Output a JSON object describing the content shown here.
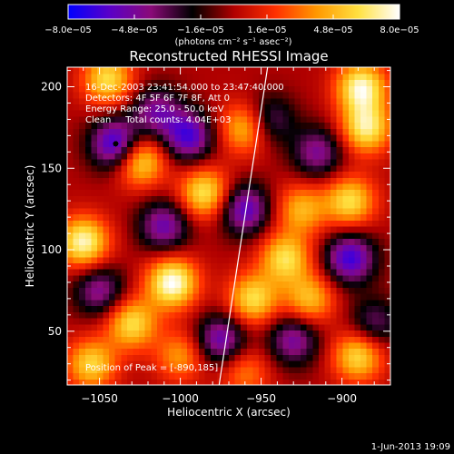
{
  "chart_data": {
    "type": "heatmap",
    "title": "Reconstructed RHESSI Image",
    "xlabel": "Heliocentric X (arcsec)",
    "ylabel": "Heliocentric Y (arcsec)",
    "xlim": [
      -1070,
      -870
    ],
    "ylim": [
      17,
      212
    ],
    "x_ticks": [
      -1050,
      -1000,
      -950,
      -900
    ],
    "x_tick_labels": [
      "−1050",
      "−1000",
      "−950",
      "−900"
    ],
    "y_ticks": [
      50,
      100,
      150,
      200
    ],
    "y_tick_labels": [
      "50",
      "100",
      "150",
      "200"
    ],
    "colorbar": {
      "range": [
        -8e-05,
        8e-05
      ],
      "tick_labels": [
        "−8.0e−05",
        "−4.8e−05",
        "−1.6e−05",
        "1.6e−05",
        "4.8e−05",
        "8.0e−05"
      ],
      "unit_label": "(photons cm⁻² s⁻¹ asec⁻²)",
      "colors": [
        "#0000ff",
        "#5a00c8",
        "#8a0a78",
        "#000000",
        "#b00000",
        "#ff3000",
        "#ff9800",
        "#ffe040",
        "#ffffff"
      ]
    },
    "annotations": [
      "16-Dec-2003 23:41:54.000 to 23:47:40.000",
      "Detectors: 4F 5F 6F 7F 8F, Att 0",
      "Energy Range: 25.0 - 50.0 keV",
      "Clean     Total counts: 4.04E+03"
    ],
    "peak_label": "Position of Peak = [-890,185]",
    "peak": [
      -890,
      185
    ],
    "limb_line": [
      [
        -976,
        17
      ],
      [
        -946,
        212
      ]
    ],
    "image_grid": {
      "x_range": [
        -1070,
        -870
      ],
      "y_range": [
        17,
        212
      ],
      "nx": 54,
      "ny": 52
    },
    "sources": [
      {
        "x": -1040,
        "y": 165,
        "amp": -1.1
      },
      {
        "x": -995,
        "y": 170,
        "amp": -0.95
      },
      {
        "x": -960,
        "y": 125,
        "amp": -0.9
      },
      {
        "x": -895,
        "y": 95,
        "amp": -1.0
      },
      {
        "x": -1010,
        "y": 115,
        "amp": -0.8
      },
      {
        "x": -975,
        "y": 45,
        "amp": -0.85
      },
      {
        "x": -930,
        "y": 45,
        "amp": -0.75
      },
      {
        "x": -1050,
        "y": 75,
        "amp": -0.7
      },
      {
        "x": -915,
        "y": 160,
        "amp": -0.7
      },
      {
        "x": -1015,
        "y": 185,
        "amp": -0.7
      },
      {
        "x": -945,
        "y": 180,
        "amp": -0.6
      },
      {
        "x": -880,
        "y": 55,
        "amp": -0.55
      },
      {
        "x": -1045,
        "y": 205,
        "amp": 0.9
      },
      {
        "x": -1060,
        "y": 105,
        "amp": 1.1
      },
      {
        "x": -1025,
        "y": 155,
        "amp": 0.95
      },
      {
        "x": -985,
        "y": 135,
        "amp": 0.95
      },
      {
        "x": -960,
        "y": 175,
        "amp": 0.8
      },
      {
        "x": -935,
        "y": 95,
        "amp": 0.9
      },
      {
        "x": -925,
        "y": 125,
        "amp": 0.7
      },
      {
        "x": -885,
        "y": 175,
        "amp": 1.0
      },
      {
        "x": -888,
        "y": 200,
        "amp": 1.1
      },
      {
        "x": -895,
        "y": 130,
        "amp": 0.9
      },
      {
        "x": -1005,
        "y": 80,
        "amp": 1.2
      },
      {
        "x": -1030,
        "y": 55,
        "amp": 0.9
      },
      {
        "x": -1055,
        "y": 30,
        "amp": 0.85
      },
      {
        "x": -955,
        "y": 70,
        "amp": 0.9
      },
      {
        "x": -920,
        "y": 70,
        "amp": 0.75
      },
      {
        "x": -890,
        "y": 35,
        "amp": 0.9
      },
      {
        "x": -1000,
        "y": 35,
        "amp": 0.6
      },
      {
        "x": -960,
        "y": 25,
        "amp": 0.5
      }
    ]
  },
  "footer": {
    "timestamp": "1-Jun-2013 19:09"
  }
}
